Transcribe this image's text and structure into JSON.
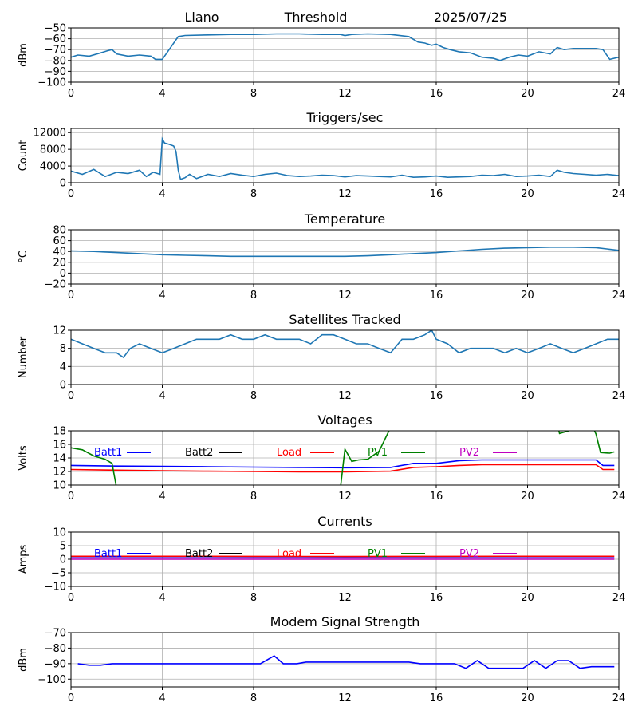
{
  "header": {
    "station": "Llano",
    "mode": "Threshold",
    "date": "2025/07/25"
  },
  "chart_data": [
    {
      "type": "line",
      "title": "",
      "ylabel": "dBm",
      "xlim": [
        0,
        24
      ],
      "ylim": [
        -100,
        -50
      ],
      "xticks": [
        0,
        4,
        8,
        12,
        16,
        20,
        24
      ],
      "yticks": [
        -100,
        -90,
        -80,
        -70,
        -60,
        -50
      ],
      "grid": true,
      "series": [
        {
          "color": "#1f77b4",
          "x": [
            0,
            0.3,
            0.8,
            1.3,
            1.6,
            1.8,
            2.0,
            2.5,
            3.0,
            3.5,
            3.7,
            4.0,
            4.3,
            4.7,
            5.0,
            6.0,
            7.0,
            8.0,
            9.0,
            10.0,
            11.0,
            11.8,
            12.0,
            12.3,
            13.0,
            14.0,
            14.8,
            15.2,
            15.5,
            15.8,
            16.0,
            16.3,
            16.6,
            17.0,
            17.5,
            18.0,
            18.5,
            18.8,
            19.2,
            19.6,
            20.0,
            20.5,
            21.0,
            21.3,
            21.6,
            22.0,
            22.5,
            23.0,
            23.3,
            23.6,
            24.0
          ],
          "y": [
            -77,
            -75,
            -76,
            -73,
            -71,
            -70,
            -74,
            -76,
            -75,
            -76,
            -79,
            -79,
            -70,
            -58,
            -57,
            -56.5,
            -56,
            -56,
            -55.5,
            -55.5,
            -56,
            -56,
            -57,
            -56,
            -55.5,
            -56,
            -58,
            -63,
            -64,
            -66,
            -65,
            -68,
            -70,
            -72,
            -73,
            -77,
            -78,
            -80,
            -77,
            -75,
            -76,
            -72,
            -74,
            -68,
            -70,
            -69,
            -69,
            -69,
            -70,
            -79,
            -77
          ]
        }
      ]
    },
    {
      "type": "line",
      "title": "Triggers/sec",
      "ylabel": "Count",
      "xlim": [
        0,
        24
      ],
      "ylim": [
        0,
        13000
      ],
      "xticks": [
        0,
        4,
        8,
        12,
        16,
        20,
        24
      ],
      "yticks": [
        0,
        4000,
        8000,
        12000
      ],
      "grid": true,
      "series": [
        {
          "color": "#1f77b4",
          "x": [
            0,
            0.5,
            1.0,
            1.5,
            2.0,
            2.5,
            3.0,
            3.3,
            3.6,
            3.9,
            4.0,
            4.1,
            4.3,
            4.5,
            4.6,
            4.7,
            4.8,
            5.0,
            5.2,
            5.5,
            6.0,
            6.5,
            7.0,
            7.5,
            8.0,
            8.5,
            9.0,
            9.5,
            10.0,
            10.5,
            11.0,
            11.5,
            12.0,
            12.5,
            13.0,
            13.5,
            14.0,
            14.5,
            15.0,
            15.5,
            16.0,
            16.5,
            17.0,
            17.5,
            18.0,
            18.5,
            19.0,
            19.5,
            20.0,
            20.5,
            21.0,
            21.3,
            21.6,
            22.0,
            22.5,
            23.0,
            23.5,
            24.0
          ],
          "y": [
            2800,
            2000,
            3200,
            1500,
            2500,
            2200,
            3000,
            1500,
            2500,
            2000,
            10500,
            9500,
            9200,
            8800,
            7500,
            3000,
            800,
            1200,
            2000,
            1000,
            2000,
            1500,
            2200,
            1800,
            1500,
            2000,
            2300,
            1700,
            1500,
            1600,
            1800,
            1700,
            1400,
            1700,
            1600,
            1500,
            1400,
            1800,
            1300,
            1400,
            1600,
            1300,
            1400,
            1500,
            1800,
            1700,
            2000,
            1500,
            1600,
            1800,
            1500,
            3000,
            2500,
            2200,
            2000,
            1800,
            2000,
            1700
          ]
        }
      ]
    },
    {
      "type": "line",
      "title": "Temperature",
      "ylabel": "°C",
      "xlim": [
        0,
        24
      ],
      "ylim": [
        -20,
        80
      ],
      "xticks": [
        0,
        4,
        8,
        12,
        16,
        20,
        24
      ],
      "yticks": [
        -20,
        0,
        20,
        40,
        60,
        80
      ],
      "grid": true,
      "series": [
        {
          "color": "#1f77b4",
          "x": [
            0,
            1,
            2,
            3,
            4,
            5,
            6,
            7,
            8,
            9,
            10,
            11,
            12,
            13,
            14,
            15,
            16,
            17,
            18,
            19,
            20,
            21,
            22,
            23,
            24
          ],
          "y": [
            41,
            40,
            38,
            36,
            34,
            33,
            32,
            31,
            31,
            31,
            31,
            31,
            31,
            32,
            34,
            36,
            38,
            41,
            44,
            46,
            47,
            48,
            48,
            47,
            42
          ]
        }
      ]
    },
    {
      "type": "line",
      "title": "Satellites Tracked",
      "ylabel": "Number",
      "xlim": [
        0,
        24
      ],
      "ylim": [
        0,
        12
      ],
      "xticks": [
        0,
        4,
        8,
        12,
        16,
        20,
        24
      ],
      "yticks": [
        0,
        4,
        8,
        12
      ],
      "grid": true,
      "series": [
        {
          "color": "#1f77b4",
          "x": [
            0,
            0.5,
            1.0,
            1.5,
            2.0,
            2.3,
            2.6,
            3.0,
            3.5,
            4.0,
            4.5,
            5.0,
            5.5,
            6.0,
            6.5,
            7.0,
            7.5,
            8.0,
            8.5,
            9.0,
            9.5,
            10.0,
            10.5,
            11.0,
            11.5,
            12.0,
            12.5,
            13.0,
            13.5,
            14.0,
            14.5,
            15.0,
            15.5,
            15.8,
            16.0,
            16.5,
            17.0,
            17.5,
            18.0,
            18.5,
            19.0,
            19.5,
            20.0,
            20.5,
            21.0,
            21.5,
            22.0,
            22.5,
            23.0,
            23.5,
            24.0
          ],
          "y": [
            10,
            9,
            8,
            7,
            7,
            6,
            8,
            9,
            8,
            7,
            8,
            9,
            10,
            10,
            10,
            11,
            10,
            10,
            11,
            10,
            10,
            10,
            9,
            11,
            11,
            10,
            9,
            9,
            8,
            7,
            10,
            10,
            11,
            12,
            10,
            9,
            7,
            8,
            8,
            8,
            7,
            8,
            7,
            8,
            9,
            8,
            7,
            8,
            9,
            10,
            10
          ]
        }
      ]
    },
    {
      "type": "line",
      "title": "Voltages",
      "ylabel": "Volts",
      "xlim": [
        0,
        24
      ],
      "ylim": [
        10,
        18
      ],
      "xticks": [
        0,
        4,
        8,
        12,
        16,
        20,
        24
      ],
      "yticks": [
        10,
        12,
        14,
        16,
        18
      ],
      "grid": true,
      "legend": "top",
      "series": [
        {
          "name": "Batt1",
          "color": "#0000ff",
          "x": [
            0,
            2,
            4,
            6,
            8,
            10,
            12,
            14,
            15,
            16,
            17,
            18,
            20,
            22,
            23,
            23.3,
            23.8
          ],
          "y": [
            12.9,
            12.8,
            12.75,
            12.7,
            12.65,
            12.6,
            12.55,
            12.6,
            13.2,
            13.2,
            13.6,
            13.7,
            13.7,
            13.7,
            13.7,
            12.9,
            12.9
          ]
        },
        {
          "name": "Batt2",
          "color": "#000000",
          "x": [],
          "y": []
        },
        {
          "name": "Load",
          "color": "#ff0000",
          "x": [
            0,
            2,
            4,
            6,
            8,
            10,
            12,
            14,
            15,
            16,
            17,
            18,
            20,
            22,
            23,
            23.3,
            23.8
          ],
          "y": [
            12.3,
            12.2,
            12.1,
            12.05,
            12.0,
            11.95,
            11.95,
            12.05,
            12.6,
            12.7,
            12.9,
            13.0,
            13.0,
            13.0,
            13.0,
            12.3,
            12.3
          ]
        },
        {
          "name": "PV1",
          "color": "#008000",
          "x": [
            0,
            0.5,
            1.0,
            1.5,
            1.8,
            2.0,
            11.8,
            12.0,
            12.3,
            12.6,
            13.0,
            13.5,
            14.0,
            14.2,
            21.3,
            21.4,
            22.8,
            23.0,
            23.2,
            23.6,
            23.8
          ],
          "y": [
            15.5,
            15.2,
            14.3,
            13.8,
            13.2,
            9.5,
            9.5,
            15.3,
            13.5,
            13.7,
            13.8,
            15.0,
            18.5,
            19.0,
            19.0,
            17.6,
            19.0,
            17.5,
            14.8,
            14.7,
            14.9
          ]
        },
        {
          "name": "PV2",
          "color": "#bf00bf",
          "x": [],
          "y": []
        }
      ]
    },
    {
      "type": "line",
      "title": "Currents",
      "ylabel": "Amps",
      "xlim": [
        0,
        24
      ],
      "ylim": [
        -10,
        10
      ],
      "xticks": [
        0,
        4,
        8,
        12,
        16,
        20,
        24
      ],
      "yticks": [
        -10,
        -5,
        0,
        5,
        10
      ],
      "grid": true,
      "legend": "top",
      "series": [
        {
          "name": "Batt1",
          "color": "#0000ff",
          "x": [
            0,
            23.8
          ],
          "y": [
            0.5,
            0.5
          ]
        },
        {
          "name": "Batt2",
          "color": "#000000",
          "x": [],
          "y": []
        },
        {
          "name": "Load",
          "color": "#ff0000",
          "x": [
            0,
            4,
            8,
            12,
            16,
            20,
            23.8
          ],
          "y": [
            1.1,
            1.1,
            1.05,
            1.0,
            1.05,
            1.1,
            1.1
          ]
        },
        {
          "name": "PV1",
          "color": "#008000",
          "x": [],
          "y": []
        },
        {
          "name": "PV2",
          "color": "#bf00bf",
          "x": [
            0,
            23.8
          ],
          "y": [
            0,
            0
          ]
        }
      ]
    },
    {
      "type": "line",
      "title": "Modem Signal Strength",
      "ylabel": "dBm",
      "xlim": [
        0,
        24
      ],
      "ylim": [
        -105,
        -70
      ],
      "xticks": [
        0,
        4,
        8,
        12,
        16,
        20,
        24
      ],
      "yticks": [
        -100,
        -90,
        -80,
        -70
      ],
      "grid": true,
      "series": [
        {
          "color": "#0000ff",
          "x": [
            0.3,
            0.8,
            1.3,
            1.8,
            2.5,
            4,
            6,
            7,
            8,
            8.3,
            8.9,
            9.3,
            9.9,
            10.3,
            11,
            12,
            13,
            14,
            14.8,
            15.3,
            16,
            16.8,
            17.3,
            17.8,
            18.3,
            19,
            19.8,
            20.3,
            20.8,
            21.3,
            21.8,
            22.3,
            22.8,
            23.8
          ],
          "y": [
            -90,
            -91,
            -91,
            -90,
            -90,
            -90,
            -90,
            -90,
            -90,
            -90,
            -85,
            -90,
            -90,
            -89,
            -89,
            -89,
            -89,
            -89,
            -89,
            -90,
            -90,
            -90,
            -93,
            -88,
            -93,
            -93,
            -93,
            -88,
            -93,
            -88,
            -88,
            -93,
            -92,
            -92
          ]
        }
      ]
    }
  ]
}
